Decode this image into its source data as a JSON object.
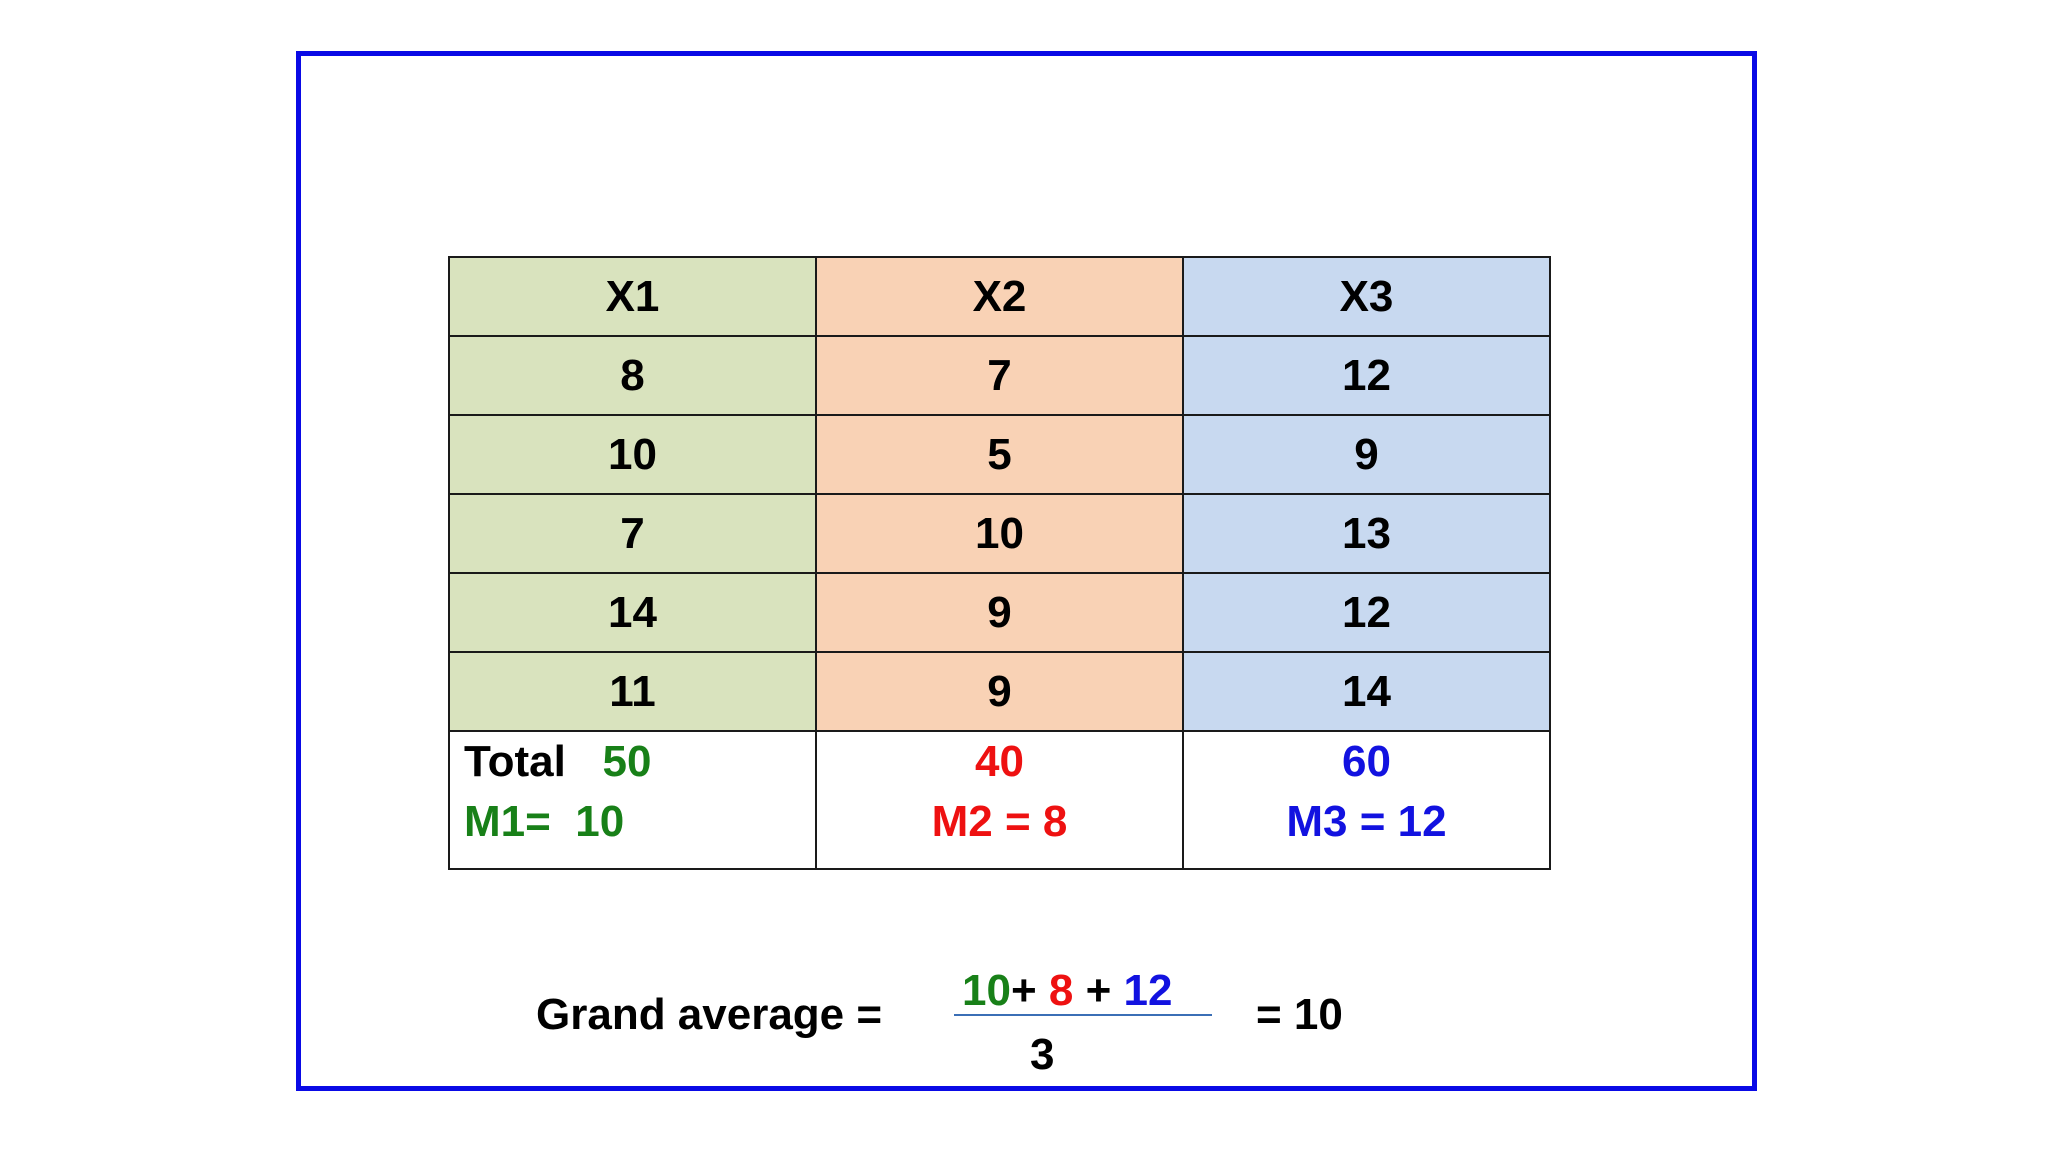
{
  "table": {
    "headers": [
      "X1",
      "X2",
      "X3"
    ],
    "rows": [
      [
        "8",
        "7",
        "12"
      ],
      [
        "10",
        "5",
        "9"
      ],
      [
        "7",
        "10",
        "13"
      ],
      [
        "14",
        "9",
        "12"
      ],
      [
        "11",
        "9",
        "14"
      ]
    ],
    "totals": {
      "label": "Total",
      "values": [
        "50",
        "40",
        "60"
      ],
      "means": [
        "M1=  10",
        "M2 = 8",
        "M3 = 12"
      ]
    }
  },
  "grand_average": {
    "label": "Grand average =",
    "numerator": {
      "term1": "10",
      "plus1": "+ ",
      "term2": "8",
      "plus2": " + ",
      "term3": "12"
    },
    "denominator": "3",
    "result": "= 10"
  },
  "colors": {
    "frame": "#0a0ae6",
    "x1_fill": "#d9e3be",
    "x2_fill": "#f9d2b5",
    "x3_fill": "#c8d9f0",
    "green": "#188018",
    "red": "#ee1111",
    "blue": "#1212e0"
  }
}
